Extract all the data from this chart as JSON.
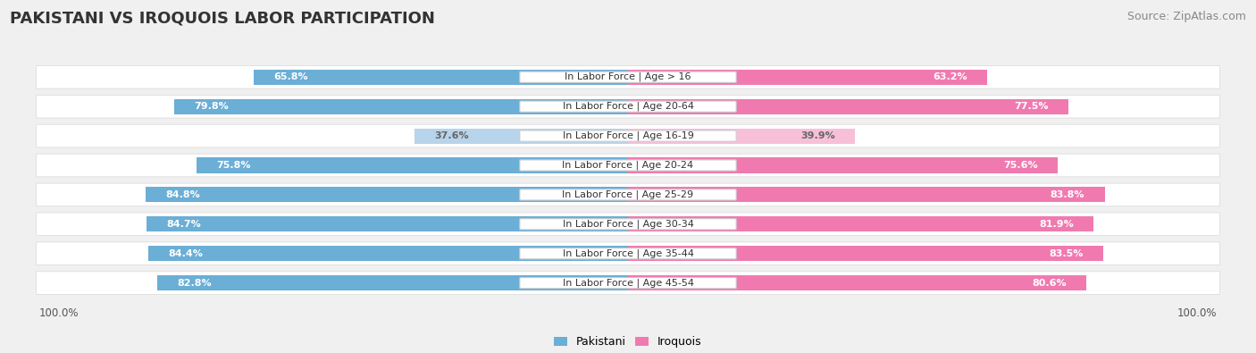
{
  "title": "PAKISTANI VS IROQUOIS LABOR PARTICIPATION",
  "source": "Source: ZipAtlas.com",
  "categories": [
    "In Labor Force | Age > 16",
    "In Labor Force | Age 20-64",
    "In Labor Force | Age 16-19",
    "In Labor Force | Age 20-24",
    "In Labor Force | Age 25-29",
    "In Labor Force | Age 30-34",
    "In Labor Force | Age 35-44",
    "In Labor Force | Age 45-54"
  ],
  "pakistani_values": [
    65.8,
    79.8,
    37.6,
    75.8,
    84.8,
    84.7,
    84.4,
    82.8
  ],
  "iroquois_values": [
    63.2,
    77.5,
    39.9,
    75.6,
    83.8,
    81.9,
    83.5,
    80.6
  ],
  "pakistani_color_normal": "#6baed6",
  "pakistani_color_light": "#b8d4eb",
  "iroquois_color_normal": "#f07ab0",
  "iroquois_color_light": "#f7c0d8",
  "light_row_index": 2,
  "background_color": "#f0f0f0",
  "bar_height": 0.52,
  "legend_pakistani": "Pakistani",
  "legend_iroquois": "Iroquois",
  "title_fontsize": 13,
  "source_fontsize": 9,
  "label_fontsize": 8,
  "category_fontsize": 8
}
